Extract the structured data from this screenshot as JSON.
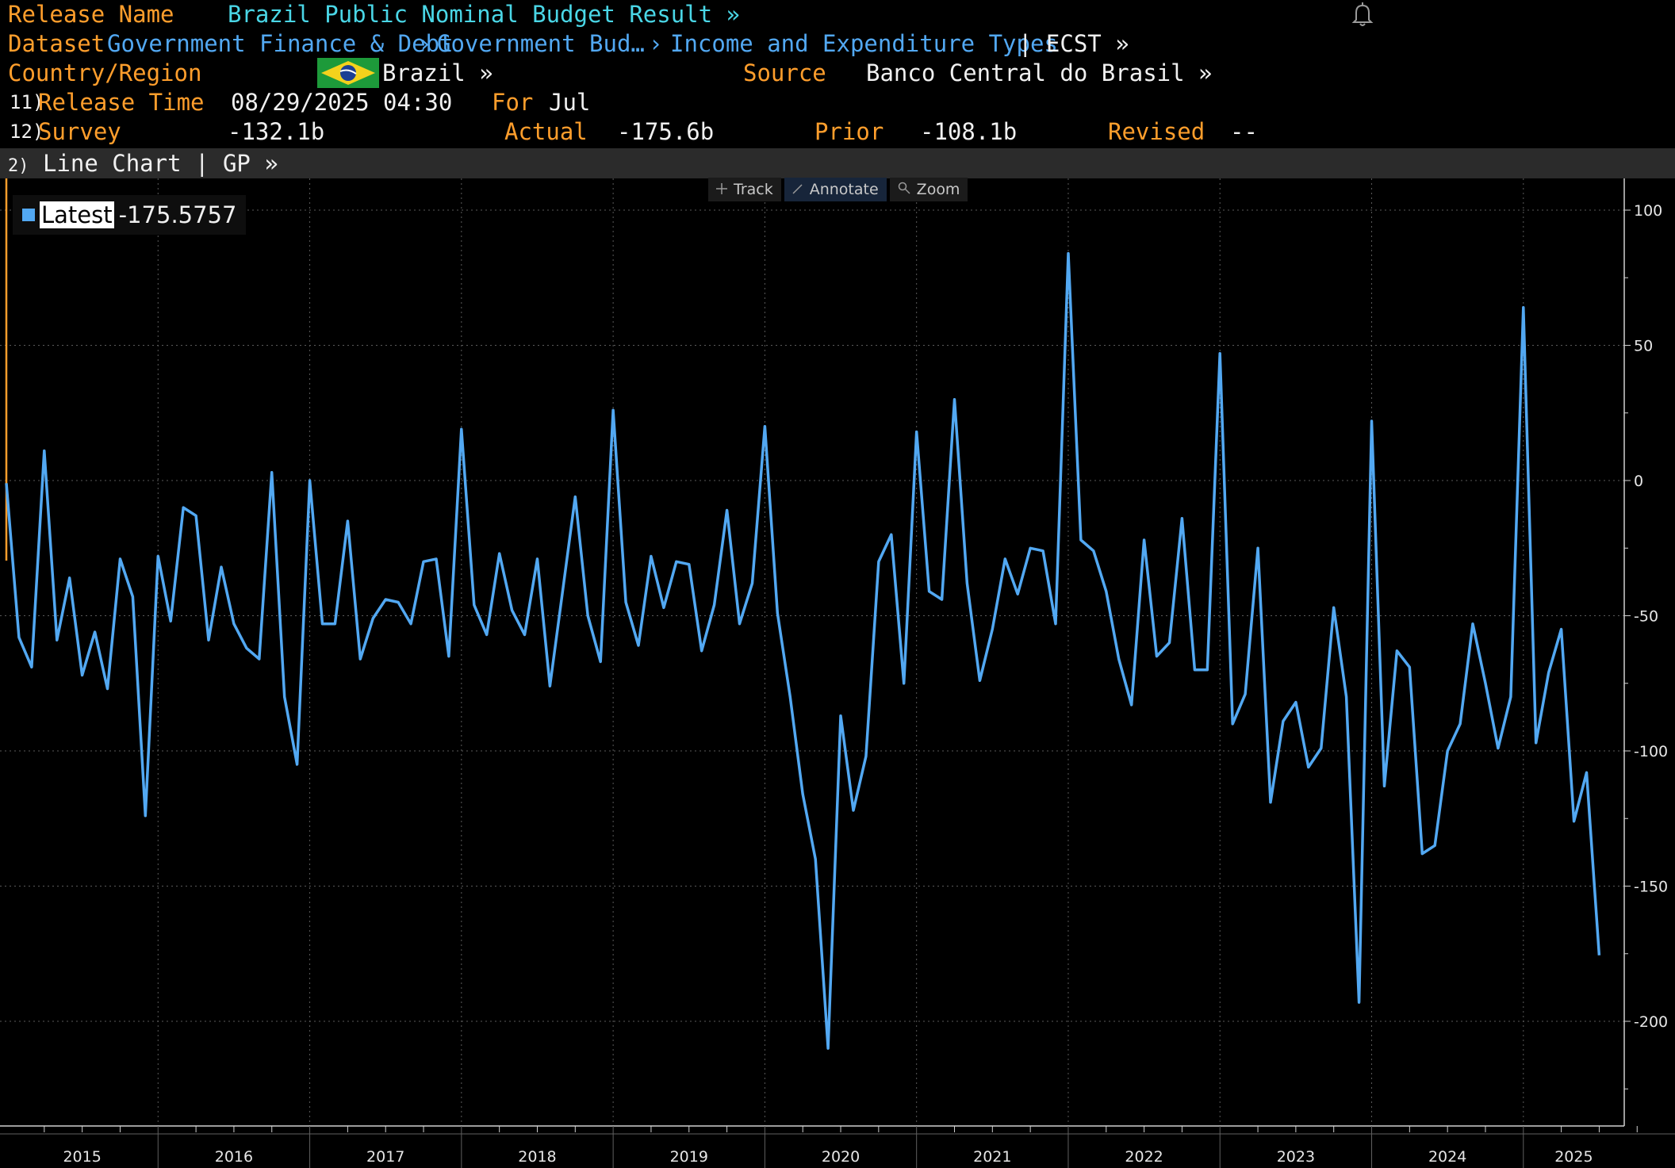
{
  "header": {
    "release_name_label": "Release Name",
    "release_name_value": "Brazil Public Nominal Budget Result »",
    "dataset_label": "Dataset",
    "dataset_path_1": "Government Finance & Debt",
    "dataset_path_2": "Government Bud…",
    "dataset_path_3": "Income and Expenditure Types",
    "dataset_sep": "›",
    "dataset_suffix": "| ECST »",
    "country_label": "Country/Region",
    "country_value": "Brazil »",
    "source_label": "Source",
    "source_value": "Banco Central do Brasil »",
    "row11_num": "11)",
    "release_time_label": "Release Time",
    "release_time_value": "08/29/2025 04:30",
    "for_label": "For",
    "for_value": "Jul",
    "row12_num": "12)",
    "survey_label": "Survey",
    "survey_value": "-132.1b",
    "actual_label": "Actual",
    "actual_value": "-175.6b",
    "prior_label": "Prior",
    "prior_value": "-108.1b",
    "revised_label": "Revised",
    "revised_value": "--"
  },
  "chart_bar": {
    "num": "2)",
    "title": "Line Chart | GP »"
  },
  "toolbar": {
    "track": "Track",
    "annotate": "Annotate",
    "zoom": "Zoom"
  },
  "legend": {
    "label": "Latest",
    "value": "-175.5757"
  },
  "icons": {
    "bell": "bell-icon",
    "flag": "brazil-flag-icon",
    "track": "crosshair-icon",
    "annotate": "pencil-icon",
    "zoom": "magnifier-icon"
  },
  "colors": {
    "series": "#52a8f2",
    "label_orange": "#ff9e2c",
    "link_blue": "#52a8f2",
    "title_teal": "#4ad6e6",
    "background": "#000000"
  },
  "chart_data": {
    "type": "line",
    "series": [
      {
        "name": "Latest",
        "start": "2015-01",
        "values": [
          -1,
          -58,
          -69,
          11,
          -59,
          -36,
          -72,
          -56,
          -77,
          -29,
          -43,
          -124,
          -28,
          -52,
          -10,
          -13,
          -59,
          -32,
          -53,
          -62,
          -66,
          3,
          -80,
          -105,
          0,
          -53,
          -53,
          -15,
          -66,
          -51,
          -44,
          -45,
          -53,
          -30,
          -29,
          -65,
          19,
          -46,
          -57,
          -27,
          -48,
          -57,
          -29,
          -76,
          -41,
          -6,
          -50,
          -67,
          26,
          -45,
          -61,
          -28,
          -47,
          -30,
          -31,
          -63,
          -46,
          -11,
          -53,
          -38,
          20,
          -49,
          -80,
          -116,
          -140,
          -210,
          -87,
          -122,
          -102,
          -30,
          -20,
          -75,
          18,
          -41,
          -44,
          30,
          -38,
          -74,
          -55,
          -29,
          -42,
          -25,
          -26,
          -53,
          84,
          -22,
          -26,
          -41,
          -66,
          -83,
          -22,
          -65,
          -60,
          -14,
          -70,
          -70,
          47,
          -90,
          -79,
          -25,
          -119,
          -89,
          -82,
          -106,
          -99,
          -47,
          -80,
          -193,
          22,
          -113,
          -63,
          -69,
          -138,
          -135,
          -100,
          -90,
          -53,
          -75,
          -99,
          -80,
          64,
          -97,
          -71,
          -55,
          -126,
          -108,
          -175.5757
        ]
      }
    ],
    "x_tick_labels": [
      "2015",
      "2016",
      "2017",
      "2018",
      "2019",
      "2020",
      "2021",
      "2022",
      "2023",
      "2024",
      "2025"
    ],
    "y_tick_labels": [
      "100",
      "50",
      "0",
      "-50",
      "-100",
      "-150",
      "-200"
    ],
    "ylim": [
      -225,
      112
    ],
    "grid": true,
    "legend_position": "top-left"
  }
}
